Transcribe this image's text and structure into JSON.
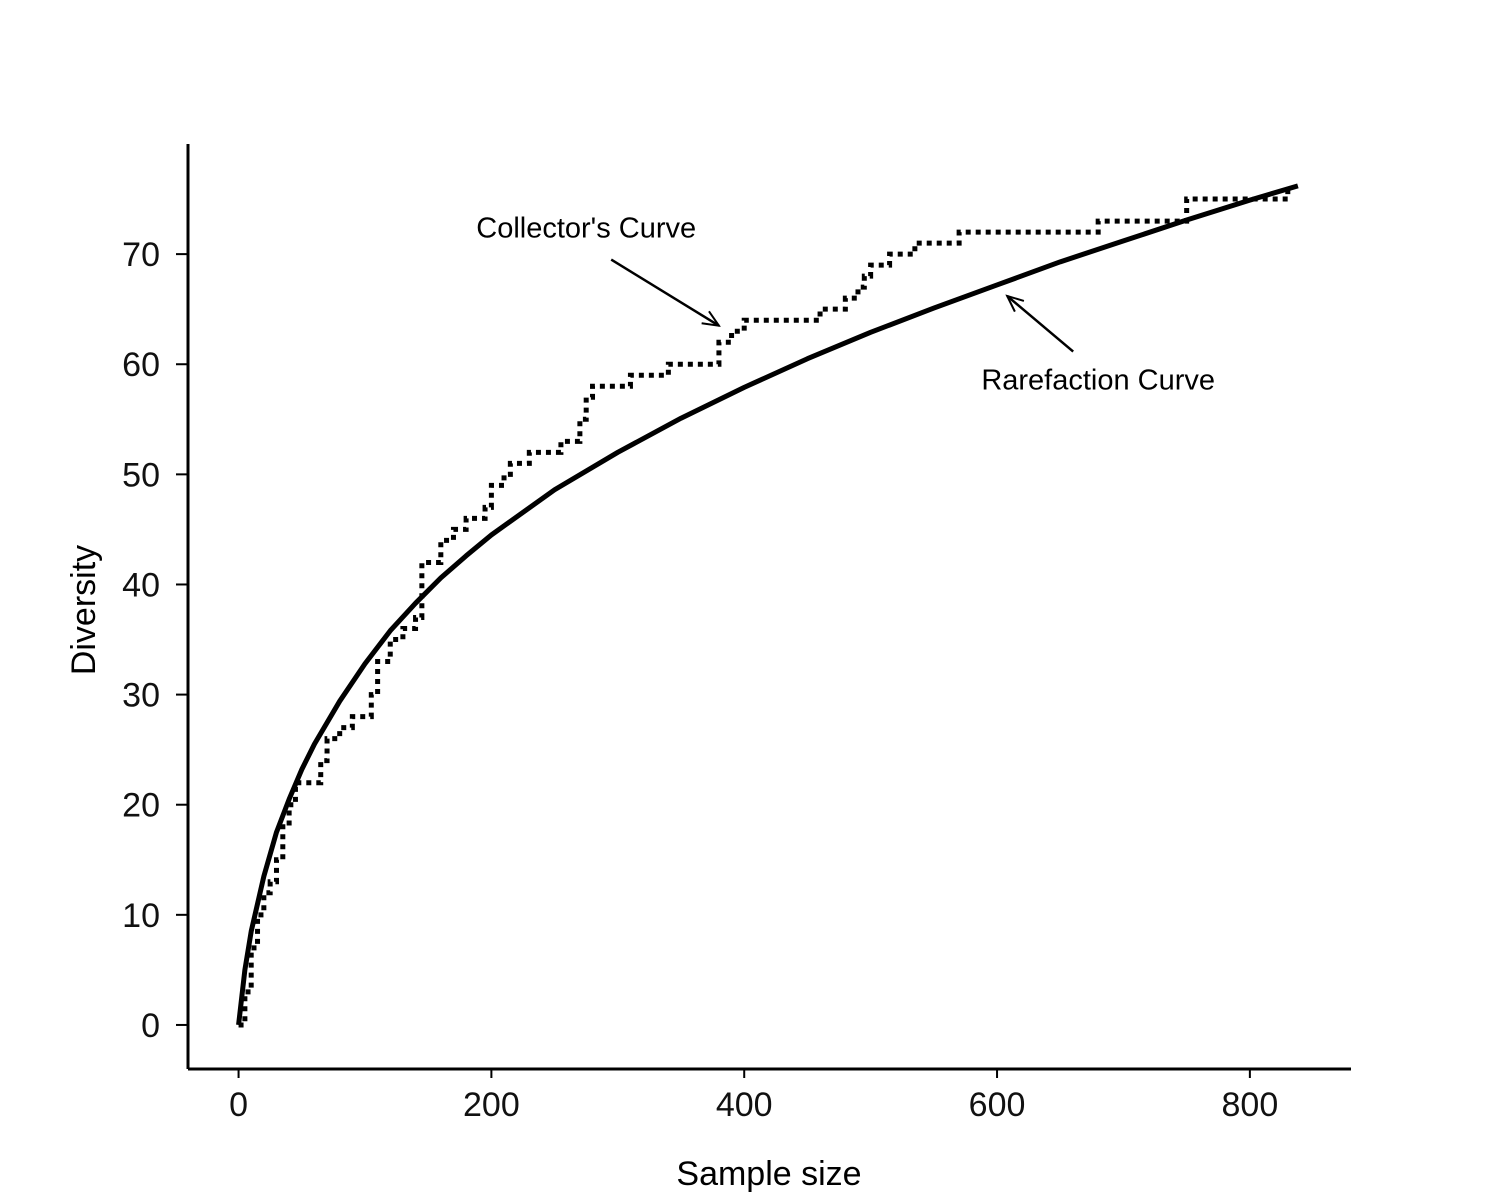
{
  "chart_data": {
    "type": "line",
    "title": "",
    "xlabel": "Sample size",
    "ylabel": "Diversity",
    "xlim": [
      -40,
      880
    ],
    "ylim": [
      -4,
      80
    ],
    "xticks": [
      0,
      200,
      400,
      600,
      800
    ],
    "yticks": [
      0,
      10,
      20,
      30,
      40,
      50,
      60,
      70
    ],
    "grid": false,
    "legend": "none",
    "series": [
      {
        "style": "dotted-step",
        "color": "#000000",
        "x": [
          0,
          5,
          10,
          15,
          20,
          25,
          30,
          35,
          40,
          45,
          55,
          65,
          70,
          80,
          90,
          100,
          105,
          110,
          120,
          130,
          140,
          145,
          160,
          170,
          180,
          195,
          200,
          210,
          215,
          230,
          255,
          270,
          275,
          280,
          290,
          310,
          320,
          340,
          350,
          375,
          380,
          390,
          400,
          405,
          440,
          460,
          480,
          490,
          495,
          500,
          505,
          515,
          520,
          535,
          545,
          560,
          570,
          670,
          680,
          740,
          750,
          820,
          830
        ],
        "y": [
          0,
          3,
          7,
          10,
          12,
          13,
          15,
          18,
          20,
          22,
          22,
          24,
          26,
          27,
          28,
          28,
          30,
          33,
          35,
          36,
          37,
          42,
          44,
          45,
          46,
          47,
          49,
          50,
          51,
          52,
          53,
          55,
          57,
          58,
          58,
          59,
          59,
          60,
          60,
          60,
          62,
          63,
          64,
          64,
          64,
          65,
          66,
          67,
          68,
          69,
          69,
          70,
          70,
          71,
          71,
          71,
          72,
          72,
          73,
          73,
          75,
          75,
          76
        ]
      },
      {
        "style": "solid",
        "color": "#000000",
        "x": [
          0,
          5,
          10,
          20,
          30,
          40,
          50,
          60,
          80,
          100,
          120,
          140,
          160,
          180,
          200,
          250,
          300,
          350,
          400,
          450,
          500,
          550,
          600,
          650,
          700,
          750,
          800,
          838
        ],
        "y": [
          0,
          5,
          8.5,
          13.5,
          17.5,
          20.5,
          23.2,
          25.5,
          29.4,
          32.8,
          35.8,
          38.3,
          40.6,
          42.6,
          44.5,
          48.6,
          52.0,
          55.1,
          57.9,
          60.5,
          62.9,
          65.1,
          67.2,
          69.3,
          71.2,
          73.1,
          74.9,
          76.2
        ]
      }
    ],
    "annotations": [
      {
        "text": "Collector's Curve",
        "target_x": 380,
        "target_y": 63.5,
        "text_x": 275,
        "text_y": 71.5
      },
      {
        "text": "Rarefaction Curve",
        "target_x": 608,
        "target_y": 66.2,
        "text_x": 680,
        "text_y": 57.7
      }
    ]
  }
}
